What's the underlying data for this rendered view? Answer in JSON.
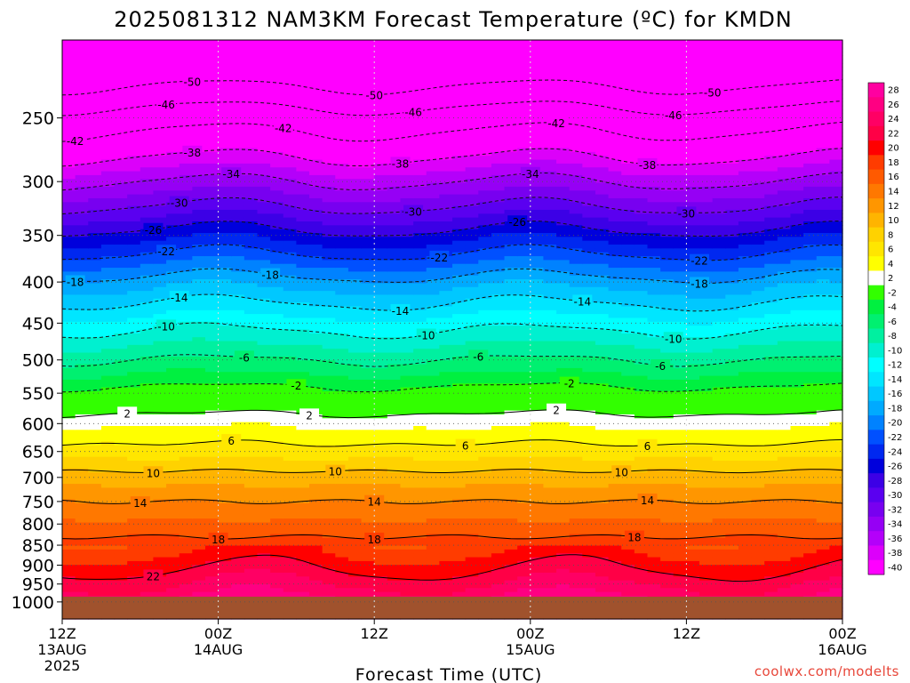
{
  "chart_data": {
    "type": "heatmap",
    "title": "2025081312 NAM3KM Forecast Temperature (ºC) for KMDN",
    "xlabel": "Forecast Time (UTC)",
    "ylabel": "",
    "x_ticks": [
      {
        "hours": 0,
        "lines": [
          "12Z",
          "13AUG",
          "2025"
        ]
      },
      {
        "hours": 12,
        "lines": [
          "00Z",
          "14AUG"
        ]
      },
      {
        "hours": 24,
        "lines": [
          "12Z"
        ]
      },
      {
        "hours": 36,
        "lines": [
          "00Z",
          "15AUG"
        ]
      },
      {
        "hours": 48,
        "lines": [
          "12Z"
        ]
      },
      {
        "hours": 60,
        "lines": [
          "00Z",
          "16AUG"
        ]
      }
    ],
    "xlim": [
      0,
      60
    ],
    "y_ticks": [
      250,
      300,
      350,
      400,
      450,
      500,
      550,
      600,
      650,
      700,
      750,
      800,
      850,
      900,
      950,
      1000
    ],
    "ylim": [
      200,
      1050
    ],
    "y_scale": "log",
    "ground": {
      "color": "#a0522d"
    },
    "colorbar_levels": [
      28,
      26,
      24,
      22,
      20,
      18,
      16,
      14,
      12,
      10,
      8,
      6,
      4,
      2,
      -2,
      -4,
      -6,
      -8,
      -10,
      -12,
      -14,
      -16,
      -18,
      -20,
      -22,
      -24,
      -26,
      -28,
      -30,
      -32,
      -34,
      -36,
      -38,
      -40
    ],
    "colorbar_colors": [
      "#ff00a0",
      "#ff0082",
      "#ff0064",
      "#ff0046",
      "#ff0000",
      "#ff3c00",
      "#ff5a00",
      "#ff7800",
      "#ff9600",
      "#ffb400",
      "#ffd200",
      "#ffe600",
      "#ffff00",
      "#ffffff",
      "#32ff00",
      "#00f040",
      "#00f070",
      "#00f0a0",
      "#00f0d0",
      "#00ffff",
      "#00e6ff",
      "#00c8ff",
      "#00aaff",
      "#0082ff",
      "#0050ff",
      "#0028f0",
      "#0000dc",
      "#3c00e6",
      "#5a00f0",
      "#7800f0",
      "#9600f5",
      "#b400fa",
      "#dc00fa",
      "#ff00ff"
    ],
    "isotherms": [
      {
        "level": 22,
        "label_hours": [
          7
        ]
      },
      {
        "level": 18,
        "label_hours": [
          12,
          24,
          44
        ]
      },
      {
        "level": 14,
        "label_hours": [
          6,
          24,
          45
        ]
      },
      {
        "level": 10,
        "label_hours": [
          7,
          21,
          43
        ]
      },
      {
        "level": 6,
        "label_hours": [
          13,
          31,
          45
        ]
      },
      {
        "level": 2,
        "label_hours": [
          5,
          19,
          38
        ]
      },
      {
        "level": -2,
        "label_hours": [
          18,
          39
        ]
      },
      {
        "level": -6,
        "label_hours": [
          14,
          32,
          46
        ]
      },
      {
        "level": -10,
        "label_hours": [
          8,
          28,
          47
        ]
      },
      {
        "level": -14,
        "label_hours": [
          9,
          26,
          40
        ]
      },
      {
        "level": -18,
        "label_hours": [
          1,
          16,
          49
        ]
      },
      {
        "level": -22,
        "label_hours": [
          8,
          29,
          49
        ]
      },
      {
        "level": -26,
        "label_hours": [
          7,
          35
        ]
      },
      {
        "level": -30,
        "label_hours": [
          9,
          27,
          48
        ]
      },
      {
        "level": -34,
        "label_hours": [
          13,
          36
        ]
      },
      {
        "level": -38,
        "label_hours": [
          10,
          26,
          45
        ]
      },
      {
        "level": -42,
        "label_hours": [
          1,
          17,
          38
        ]
      },
      {
        "level": -46,
        "label_hours": [
          8,
          27,
          47
        ]
      },
      {
        "level": -50,
        "label_hours": [
          10,
          24,
          50
        ]
      }
    ]
  },
  "credit": "coolwx.com/modelts"
}
